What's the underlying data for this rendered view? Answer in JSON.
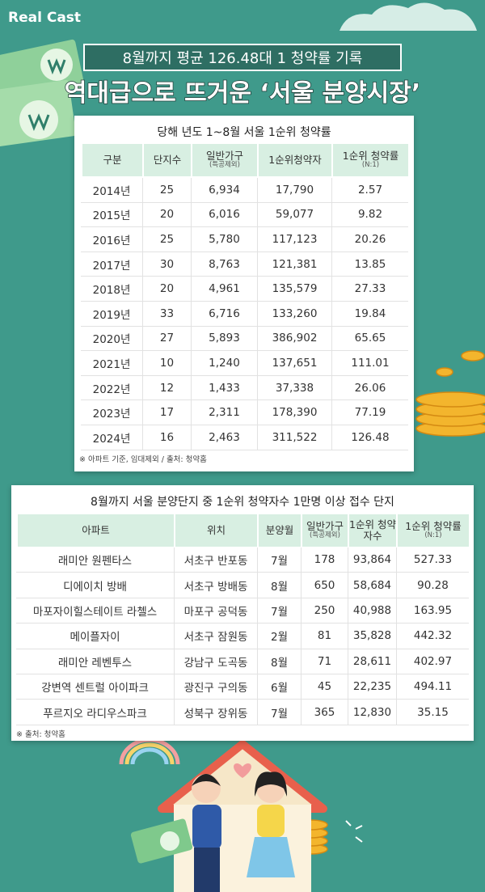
{
  "logo": "Real Cast",
  "header": {
    "subtitle": "8월까지 평균 126.48대 1 청약률 기록",
    "title": "역대급으로 뜨거운 ‘서울 분양시장’"
  },
  "table1": {
    "title": "당해 년도 1~8월 서울 1순위 청약률",
    "columns": [
      {
        "label": "구분"
      },
      {
        "label": "단지수"
      },
      {
        "label": "일반가구",
        "sub": "(특공제외)"
      },
      {
        "label": "1순위청약자"
      },
      {
        "label": "1순위 청약률",
        "sub": "(N:1)"
      }
    ],
    "rows": [
      [
        "2014년",
        "25",
        "6,934",
        "17,790",
        "2.57"
      ],
      [
        "2015년",
        "20",
        "6,016",
        "59,077",
        "9.82"
      ],
      [
        "2016년",
        "25",
        "5,780",
        "117,123",
        "20.26"
      ],
      [
        "2017년",
        "30",
        "8,763",
        "121,381",
        "13.85"
      ],
      [
        "2018년",
        "20",
        "4,961",
        "135,579",
        "27.33"
      ],
      [
        "2019년",
        "33",
        "6,716",
        "133,260",
        "19.84"
      ],
      [
        "2020년",
        "27",
        "5,893",
        "386,902",
        "65.65"
      ],
      [
        "2021년",
        "10",
        "1,240",
        "137,651",
        "111.01"
      ],
      [
        "2022년",
        "12",
        "1,433",
        "37,338",
        "26.06"
      ],
      [
        "2023년",
        "17",
        "2,311",
        "178,390",
        "77.19"
      ],
      [
        "2024년",
        "16",
        "2,463",
        "311,522",
        "126.48"
      ]
    ],
    "note": "※ 아파트 기준, 임대제외 / 출처: 청약홈"
  },
  "table2": {
    "title": "8월까지 서울 분양단지 중 1순위 청약자수 1만명 이상 접수 단지",
    "columns": [
      {
        "label": "아파트"
      },
      {
        "label": "위치"
      },
      {
        "label": "분양월"
      },
      {
        "label": "일반가구",
        "sub": "(특공제외)"
      },
      {
        "label": "1순위 청약자수"
      },
      {
        "label": "1순위 청약률",
        "sub": "(N:1)"
      }
    ],
    "rows": [
      [
        "래미안 원펜타스",
        "서초구 반포동",
        "7월",
        "178",
        "93,864",
        "527.33"
      ],
      [
        "디에이치 방배",
        "서초구 방배동",
        "8월",
        "650",
        "58,684",
        "90.28"
      ],
      [
        "마포자이힐스테이트 라첼스",
        "마포구 공덕동",
        "7월",
        "250",
        "40,988",
        "163.95"
      ],
      [
        "메이플자이",
        "서초구 잠원동",
        "2월",
        "81",
        "35,828",
        "442.32"
      ],
      [
        "래미안 레벤투스",
        "강남구 도곡동",
        "8월",
        "71",
        "28,611",
        "402.97"
      ],
      [
        "강변역 센트럴 아이파크",
        "광진구 구의동",
        "6월",
        "45",
        "22,235",
        "494.11"
      ],
      [
        "푸르지오 라디우스파크",
        "성북구 장위동",
        "7월",
        "365",
        "12,830",
        "35.15"
      ]
    ],
    "note": "※ 출처: 청약홈"
  }
}
